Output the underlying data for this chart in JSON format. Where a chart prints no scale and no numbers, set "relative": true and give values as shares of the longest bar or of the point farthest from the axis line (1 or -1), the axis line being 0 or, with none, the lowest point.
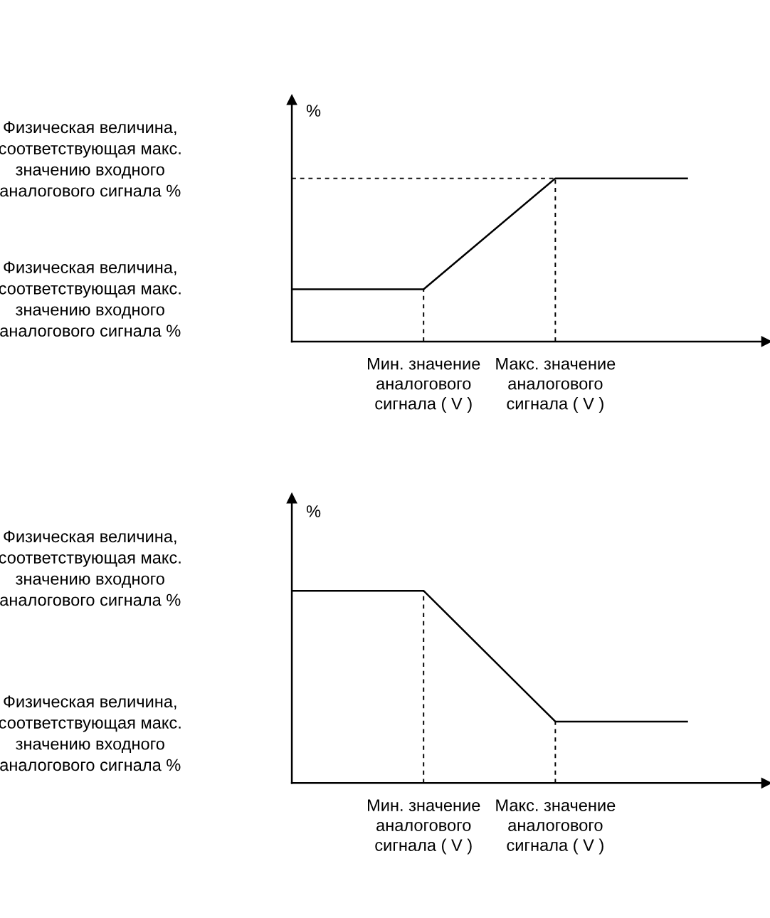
{
  "chart_data": [
    {
      "type": "line",
      "relative": true,
      "ylabel": "%",
      "categories": [
        null,
        "Мин. значение\nаналогового\nсигнала ( V )",
        "Макс. значение\nаналогового\nсигнала ( V )",
        null
      ],
      "series": [
        {
          "color": "#000000",
          "values": [
            0.32,
            0.32,
            1,
            1
          ],
          "line_style": "solid"
        },
        {
          "color": "#000000",
          "values": [
            1,
            1,
            1,
            null
          ],
          "line_style": "dashed"
        }
      ],
      "ref_lines": [
        {
          "axis": "x",
          "value": "Мин. значение\nаналогового\nсигнала ( V )",
          "line_style": "dashed"
        },
        {
          "axis": "x",
          "value": "Макс. значение\nаналогового\nсигнала ( V )",
          "line_style": "dashed"
        }
      ],
      "annotations": [
        "Физическая величина,\nсоответствующая макс.\nзначению входного\nаналогового сигнала %",
        "Физическая величина,\nсоответствующая макс.\nзначению входного\nаналогового сигнала %"
      ],
      "grid": false,
      "legend": false
    },
    {
      "type": "line",
      "relative": true,
      "ylabel": "%",
      "categories": [
        null,
        "Мин. значение\nаналогового\nсигнала ( V )",
        "Макс. значение\nаналогового\nсигнала ( V )",
        null
      ],
      "series": [
        {
          "color": "#000000",
          "values": [
            1,
            1,
            0.32,
            0.32
          ],
          "line_style": "solid"
        }
      ],
      "ref_lines": [
        {
          "axis": "x",
          "value": "Мин. значение\nаналогового\nсигнала ( V )",
          "line_style": "dashed"
        },
        {
          "axis": "x",
          "value": "Макс. значение\nаналогового\nсигнала ( V )",
          "line_style": "dashed"
        }
      ],
      "annotations": [
        "Физическая величина,\nсоответствующая макс.\nзначению входного\nаналогового сигнала %",
        "Физическая величина,\nсоответствующая макс.\nзначению входного\nаналогового сигнала %"
      ],
      "grid": false,
      "legend": false
    }
  ]
}
